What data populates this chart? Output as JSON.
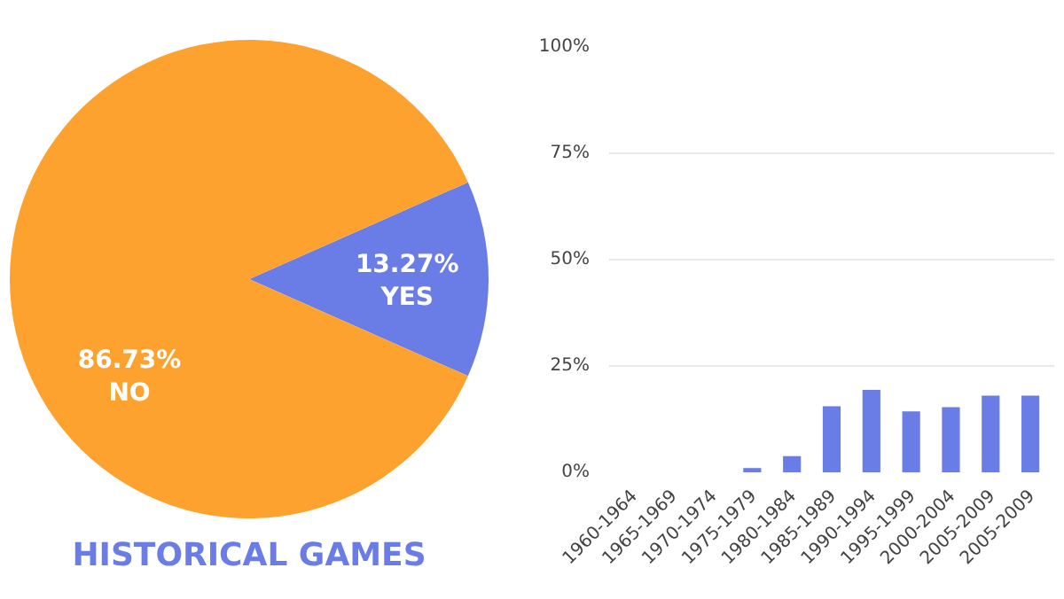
{
  "chart_data": [
    {
      "type": "pie",
      "title": "HISTORICAL GAMES",
      "categories": [
        "YES",
        "NO"
      ],
      "values": [
        13.27,
        86.73
      ],
      "colors": [
        "#6a7de6",
        "#fda22f"
      ],
      "value_labels": [
        "13.27%",
        "86.73%"
      ]
    },
    {
      "type": "bar",
      "categories": [
        "1960-1964",
        "1965-1969",
        "1970-1974",
        "1975-1979",
        "1980-1984",
        "1985-1989",
        "1990-1994",
        "1995-1999",
        "2000-2004",
        "2005-2009",
        "2005-2009"
      ],
      "values": [
        0,
        0,
        0,
        1,
        3.8,
        15.5,
        19.4,
        14.3,
        15.3,
        18,
        18
      ],
      "color": "#6a7de6",
      "ylim": [
        0,
        100
      ],
      "yticks": [
        {
          "value": 0,
          "label": "0%"
        },
        {
          "value": 25,
          "label": "25%"
        },
        {
          "value": 50,
          "label": "50%"
        },
        {
          "value": 75,
          "label": "75%"
        },
        {
          "value": 100,
          "label": "100%"
        }
      ],
      "grid": "y"
    }
  ]
}
